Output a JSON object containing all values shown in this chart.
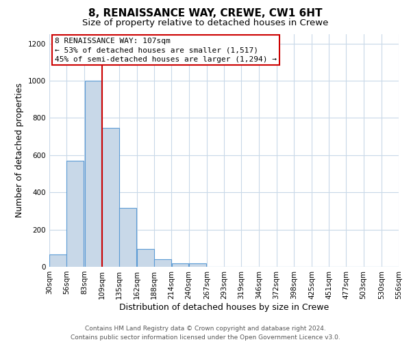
{
  "title": "8, RENAISSANCE WAY, CREWE, CW1 6HT",
  "subtitle": "Size of property relative to detached houses in Crewe",
  "xlabel": "Distribution of detached houses by size in Crewe",
  "ylabel": "Number of detached properties",
  "bar_left_edges": [
    30,
    56,
    83,
    109,
    135,
    162,
    188,
    214,
    240,
    267,
    293,
    319,
    346,
    372,
    398,
    425,
    451,
    477,
    503,
    530
  ],
  "bar_heights": [
    65,
    570,
    1000,
    745,
    315,
    95,
    40,
    20,
    18,
    0,
    0,
    0,
    0,
    0,
    0,
    0,
    0,
    0,
    0,
    0
  ],
  "bin_width": 26,
  "bar_color": "#c8d8e8",
  "bar_edge_color": "#5b9bd5",
  "property_line_x": 109,
  "property_line_color": "#cc0000",
  "annotation_line1": "8 RENAISSANCE WAY: 107sqm",
  "annotation_line2": "← 53% of detached houses are smaller (1,517)",
  "annotation_line3": "45% of semi-detached houses are larger (1,294) →",
  "ylim": [
    0,
    1250
  ],
  "xlim_left": 30,
  "xlim_right": 556,
  "tick_labels": [
    "30sqm",
    "56sqm",
    "83sqm",
    "109sqm",
    "135sqm",
    "162sqm",
    "188sqm",
    "214sqm",
    "240sqm",
    "267sqm",
    "293sqm",
    "319sqm",
    "346sqm",
    "372sqm",
    "398sqm",
    "425sqm",
    "451sqm",
    "477sqm",
    "503sqm",
    "530sqm",
    "556sqm"
  ],
  "tick_positions": [
    30,
    56,
    83,
    109,
    135,
    162,
    188,
    214,
    240,
    267,
    293,
    319,
    346,
    372,
    398,
    425,
    451,
    477,
    503,
    530,
    556
  ],
  "yticks": [
    0,
    200,
    400,
    600,
    800,
    1000,
    1200
  ],
  "footer_line1": "Contains HM Land Registry data © Crown copyright and database right 2024.",
  "footer_line2": "Contains public sector information licensed under the Open Government Licence v3.0.",
  "background_color": "#ffffff",
  "grid_color": "#c8d8e8",
  "title_fontsize": 11,
  "subtitle_fontsize": 9.5,
  "axis_label_fontsize": 9,
  "tick_fontsize": 7.5,
  "footer_fontsize": 6.5,
  "annot_fontsize": 8
}
